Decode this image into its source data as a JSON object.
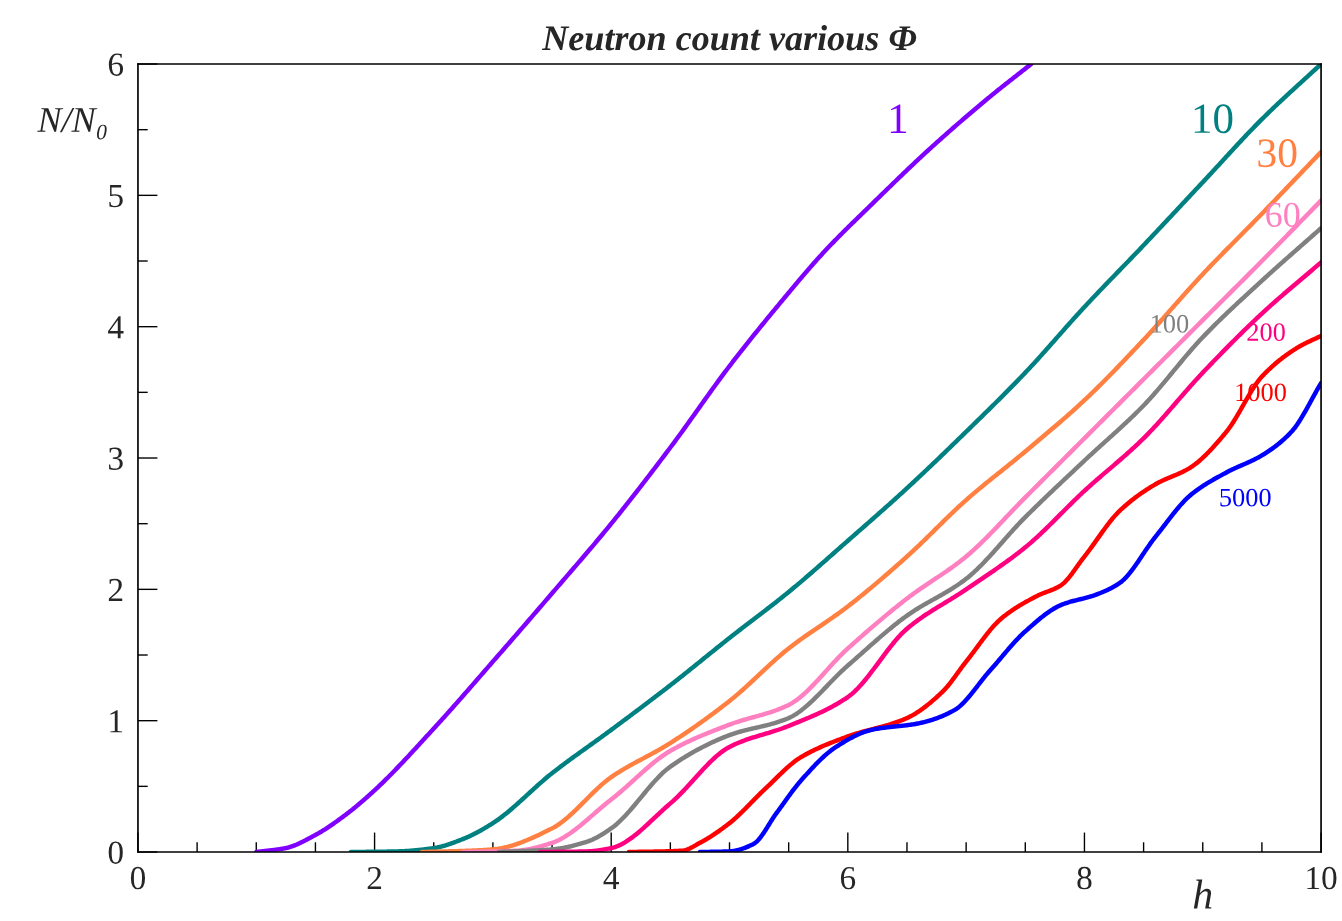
{
  "chart_data": {
    "type": "line",
    "title": "Neutron count various Φ",
    "xlabel": "h",
    "ylabel": "N/N₀",
    "xlim": [
      0,
      10
    ],
    "ylim": [
      0,
      6
    ],
    "xticks": [
      0,
      {
        "value": 0.5,
        "label": null
      },
      {
        "value": 1,
        "label": null
      },
      {
        "value": 1.5,
        "label": null
      },
      2,
      {
        "value": 2.5,
        "label": null
      },
      {
        "value": 3,
        "label": null
      },
      {
        "value": 3.5,
        "label": null
      },
      4,
      {
        "value": 4.5,
        "label": null
      },
      {
        "value": 5,
        "label": null
      },
      {
        "value": 5.5,
        "label": null
      },
      6,
      {
        "value": 6.5,
        "label": null
      },
      {
        "value": 7,
        "label": null
      },
      {
        "value": 7.5,
        "label": null
      },
      8,
      {
        "value": 8.5,
        "label": null
      },
      {
        "value": 9,
        "label": null
      },
      {
        "value": 9.5,
        "label": null
      },
      10
    ],
    "yticks": [
      0,
      {
        "value": 0.5,
        "label": null
      },
      1,
      {
        "value": 1.5,
        "label": null
      },
      2,
      {
        "value": 2.5,
        "label": null
      },
      3,
      {
        "value": 3.5,
        "label": null
      },
      4,
      {
        "value": 4.5,
        "label": null
      },
      5,
      {
        "value": 5.5,
        "label": null
      },
      6
    ],
    "grid": false,
    "legend": false,
    "marker": "none",
    "line_style": "solid",
    "series": [
      {
        "name": "1",
        "color": "#8000ff",
        "x": [
          1.0,
          1.25,
          1.5,
          1.75,
          2.0,
          2.5,
          3.0,
          3.5,
          4.0,
          4.5,
          5.0,
          5.4,
          5.8,
          6.2,
          6.7,
          7.2,
          7.55
        ],
        "values": [
          0,
          0.03,
          0.13,
          0.28,
          0.47,
          0.94,
          1.45,
          1.97,
          2.5,
          3.08,
          3.7,
          4.15,
          4.57,
          4.93,
          5.36,
          5.75,
          6.0
        ]
      },
      {
        "name": "10",
        "color": "#008080",
        "x": [
          1.8,
          2.2,
          2.5,
          2.75,
          3.0,
          3.5,
          4.0,
          4.5,
          5.0,
          5.5,
          6.0,
          6.5,
          7.0,
          7.5,
          8.0,
          8.5,
          9.0,
          9.5,
          10
        ],
        "values": [
          0,
          0.005,
          0.03,
          0.1,
          0.22,
          0.6,
          0.93,
          1.27,
          1.63,
          1.98,
          2.37,
          2.77,
          3.2,
          3.65,
          4.15,
          4.62,
          5.1,
          5.58,
          6.0
        ]
      },
      {
        "name": "30",
        "color": "#ff8040",
        "x": [
          2.4,
          2.8,
          3.0,
          3.5,
          4.0,
          4.5,
          5.0,
          5.5,
          6.0,
          6.5,
          7.0,
          7.5,
          8.0,
          8.5,
          9.0,
          9.5,
          10
        ],
        "values": [
          0,
          0.01,
          0.02,
          0.18,
          0.57,
          0.83,
          1.15,
          1.55,
          1.87,
          2.25,
          2.68,
          3.05,
          3.44,
          3.9,
          4.4,
          4.86,
          5.33
        ]
      },
      {
        "name": "60",
        "color": "#ff80c0",
        "x": [
          2.75,
          3.2,
          3.5,
          4.0,
          4.5,
          5.0,
          5.5,
          6.0,
          6.5,
          7.0,
          7.5,
          8.0,
          8.5,
          9.0,
          9.5,
          10
        ],
        "values": [
          0,
          0.01,
          0.07,
          0.4,
          0.77,
          0.97,
          1.12,
          1.55,
          1.93,
          2.25,
          2.7,
          3.15,
          3.6,
          4.05,
          4.5,
          4.96
        ]
      },
      {
        "name": "100",
        "color": "#808080",
        "x": [
          3.05,
          3.5,
          3.8,
          4.0,
          4.5,
          5.0,
          5.5,
          6.0,
          6.5,
          7.0,
          7.5,
          8.0,
          8.5,
          9.0,
          9.5,
          10
        ],
        "values": [
          0,
          0.02,
          0.08,
          0.18,
          0.65,
          0.89,
          1.02,
          1.42,
          1.8,
          2.08,
          2.55,
          2.98,
          3.4,
          3.92,
          4.35,
          4.75
        ]
      },
      {
        "name": "200",
        "color": "#ff0080",
        "x": [
          3.4,
          3.8,
          4.0,
          4.5,
          5.0,
          5.5,
          6.0,
          6.5,
          7.0,
          7.5,
          8.0,
          8.5,
          9.0,
          9.5,
          10
        ],
        "values": [
          0,
          0.005,
          0.03,
          0.37,
          0.8,
          0.96,
          1.18,
          1.7,
          2.0,
          2.32,
          2.75,
          3.15,
          3.65,
          4.1,
          4.49
        ]
      },
      {
        "name": "1000",
        "color": "#ff0000",
        "x": [
          4.15,
          4.6,
          4.75,
          5.0,
          5.3,
          5.6,
          6.0,
          6.5,
          6.8,
          7.0,
          7.3,
          7.6,
          7.8,
          8.0,
          8.3,
          8.6,
          8.9,
          9.2,
          9.5,
          9.8,
          10
        ],
        "values": [
          0,
          0.01,
          0.07,
          0.22,
          0.48,
          0.72,
          0.88,
          1.02,
          1.22,
          1.45,
          1.78,
          1.95,
          2.03,
          2.25,
          2.6,
          2.8,
          2.93,
          3.2,
          3.62,
          3.84,
          3.93
        ]
      },
      {
        "name": "5000",
        "color": "#0000ff",
        "x": [
          4.75,
          5.0,
          5.2,
          5.4,
          5.6,
          5.9,
          6.2,
          6.6,
          6.9,
          7.2,
          7.5,
          7.8,
          8.1,
          8.3,
          8.6,
          8.9,
          9.2,
          9.5,
          9.75,
          10
        ],
        "values": [
          0,
          0.005,
          0.06,
          0.3,
          0.54,
          0.8,
          0.93,
          0.98,
          1.08,
          1.38,
          1.68,
          1.88,
          1.96,
          2.05,
          2.4,
          2.72,
          2.89,
          3.02,
          3.2,
          3.57
        ]
      }
    ]
  }
}
